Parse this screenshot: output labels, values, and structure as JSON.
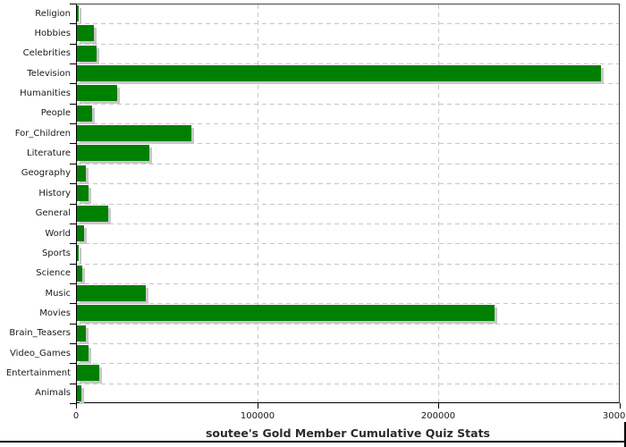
{
  "title": "soutee's Gold Member Cumulative Quiz Stats",
  "colors": {
    "bar": "#008000",
    "bar_shadow": "#c8c8c8",
    "grid": "#c6c6c6",
    "plot_border": "#444444",
    "axis": "#000000",
    "text": "#1a1a1a",
    "background": "#ffffff"
  },
  "chart_data": {
    "type": "bar",
    "orientation": "horizontal",
    "title": "soutee's Gold Member Cumulative Quiz Stats",
    "categories": [
      "Religion",
      "Hobbies",
      "Celebrities",
      "Television",
      "Humanities",
      "People",
      "For_Children",
      "Literature",
      "Geography",
      "History",
      "General",
      "World",
      "Sports",
      "Science",
      "Music",
      "Movies",
      "Brain_Teasers",
      "Video_Games",
      "Entertainment",
      "Animals"
    ],
    "values": [
      900,
      9500,
      11000,
      289000,
      22000,
      8200,
      63000,
      40000,
      5000,
      6200,
      17500,
      3800,
      1200,
      2800,
      38000,
      230500,
      4800,
      6200,
      12300,
      2500
    ],
    "xlim": [
      0,
      300000
    ],
    "xticks": [
      0,
      100000,
      200000,
      300000
    ],
    "xtick_labels": [
      "0",
      "100000",
      "200000",
      "300000"
    ],
    "grid": "dashed",
    "legend": "none"
  }
}
